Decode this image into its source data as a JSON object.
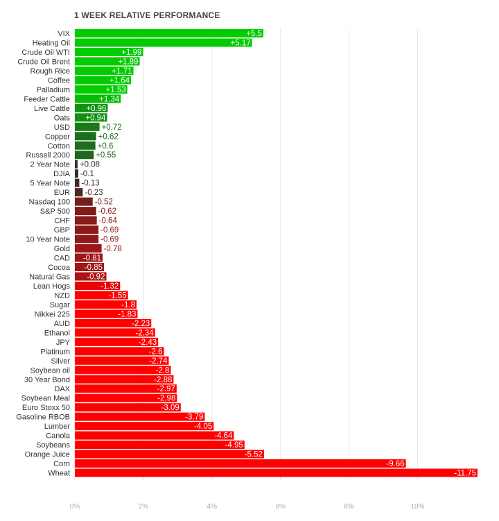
{
  "chart_data": {
    "type": "bar",
    "orientation": "horizontal",
    "title": "1 WEEK RELATIVE PERFORMANCE",
    "xlim": [
      0,
      11.75
    ],
    "xticks": [
      {
        "value": 0,
        "label": "0%"
      },
      {
        "value": 2,
        "label": "2%"
      },
      {
        "value": 4,
        "label": "4%"
      },
      {
        "value": 6,
        "label": "6%"
      },
      {
        "value": 8,
        "label": "8%"
      },
      {
        "value": 10,
        "label": "10%"
      }
    ],
    "grid": true,
    "bar_length": "absolute value",
    "colors": {
      "positive": "#00cc00",
      "negative": "#ff0000",
      "neutral": "#2e2e2e"
    },
    "categories": [
      "VIX",
      "Heating Oil",
      "Crude Oil WTI",
      "Crude Oil Brent",
      "Rough Rice",
      "Coffee",
      "Palladium",
      "Feeder Cattle",
      "Live Cattle",
      "Oats",
      "USD",
      "Copper",
      "Cotton",
      "Russell 2000",
      "2 Year Note",
      "DJIA",
      "5 Year Note",
      "EUR",
      "Nasdaq 100",
      "S&P 500",
      "CHF",
      "GBP",
      "10 Year Note",
      "Gold",
      "CAD",
      "Cocoa",
      "Natural Gas",
      "Lean Hogs",
      "NZD",
      "Sugar",
      "Nikkei 225",
      "AUD",
      "Ethanol",
      "JPY",
      "Platinum",
      "Silver",
      "Soybean oil",
      "30 Year Bond",
      "DAX",
      "Soybean Meal",
      "Euro Stoxx 50",
      "Gasoline RBOB",
      "Lumber",
      "Canola",
      "Soybeans",
      "Orange Juice",
      "Corn",
      "Wheat"
    ],
    "values": [
      5.5,
      5.17,
      1.99,
      1.89,
      1.71,
      1.64,
      1.53,
      1.34,
      0.96,
      0.94,
      0.72,
      0.62,
      0.6,
      0.55,
      0.08,
      -0.1,
      -0.13,
      -0.23,
      -0.52,
      -0.62,
      -0.64,
      -0.69,
      -0.69,
      -0.78,
      -0.81,
      -0.85,
      -0.92,
      -1.32,
      -1.55,
      -1.8,
      -1.83,
      -2.23,
      -2.34,
      -2.43,
      -2.6,
      -2.74,
      -2.8,
      -2.88,
      -2.97,
      -2.98,
      -3.09,
      -3.79,
      -4.05,
      -4.64,
      -4.95,
      -5.52,
      -9.66,
      -11.75
    ],
    "value_labels": [
      "+5.5",
      "+5.17",
      "+1.99",
      "+1.89",
      "+1.71",
      "+1.64",
      "+1.53",
      "+1.34",
      "+0.96",
      "+0.94",
      "+0.72",
      "+0.62",
      "+0.6",
      "+0.55",
      "+0.08",
      "-0.1",
      "-0.13",
      "-0.23",
      "-0.52",
      "-0.62",
      "-0.64",
      "-0.69",
      "-0.69",
      "-0.78",
      "-0.81",
      "-0.85",
      "-0.92",
      "-1.32",
      "-1.55",
      "-1.8",
      "-1.83",
      "-2.23",
      "-2.34",
      "-2.43",
      "-2.6",
      "-2.74",
      "-2.8",
      "-2.88",
      "-2.97",
      "-2.98",
      "-3.09",
      "-3.79",
      "-4.05",
      "-4.64",
      "-4.95",
      "-5.52",
      "-9.66",
      "-11.75"
    ]
  }
}
